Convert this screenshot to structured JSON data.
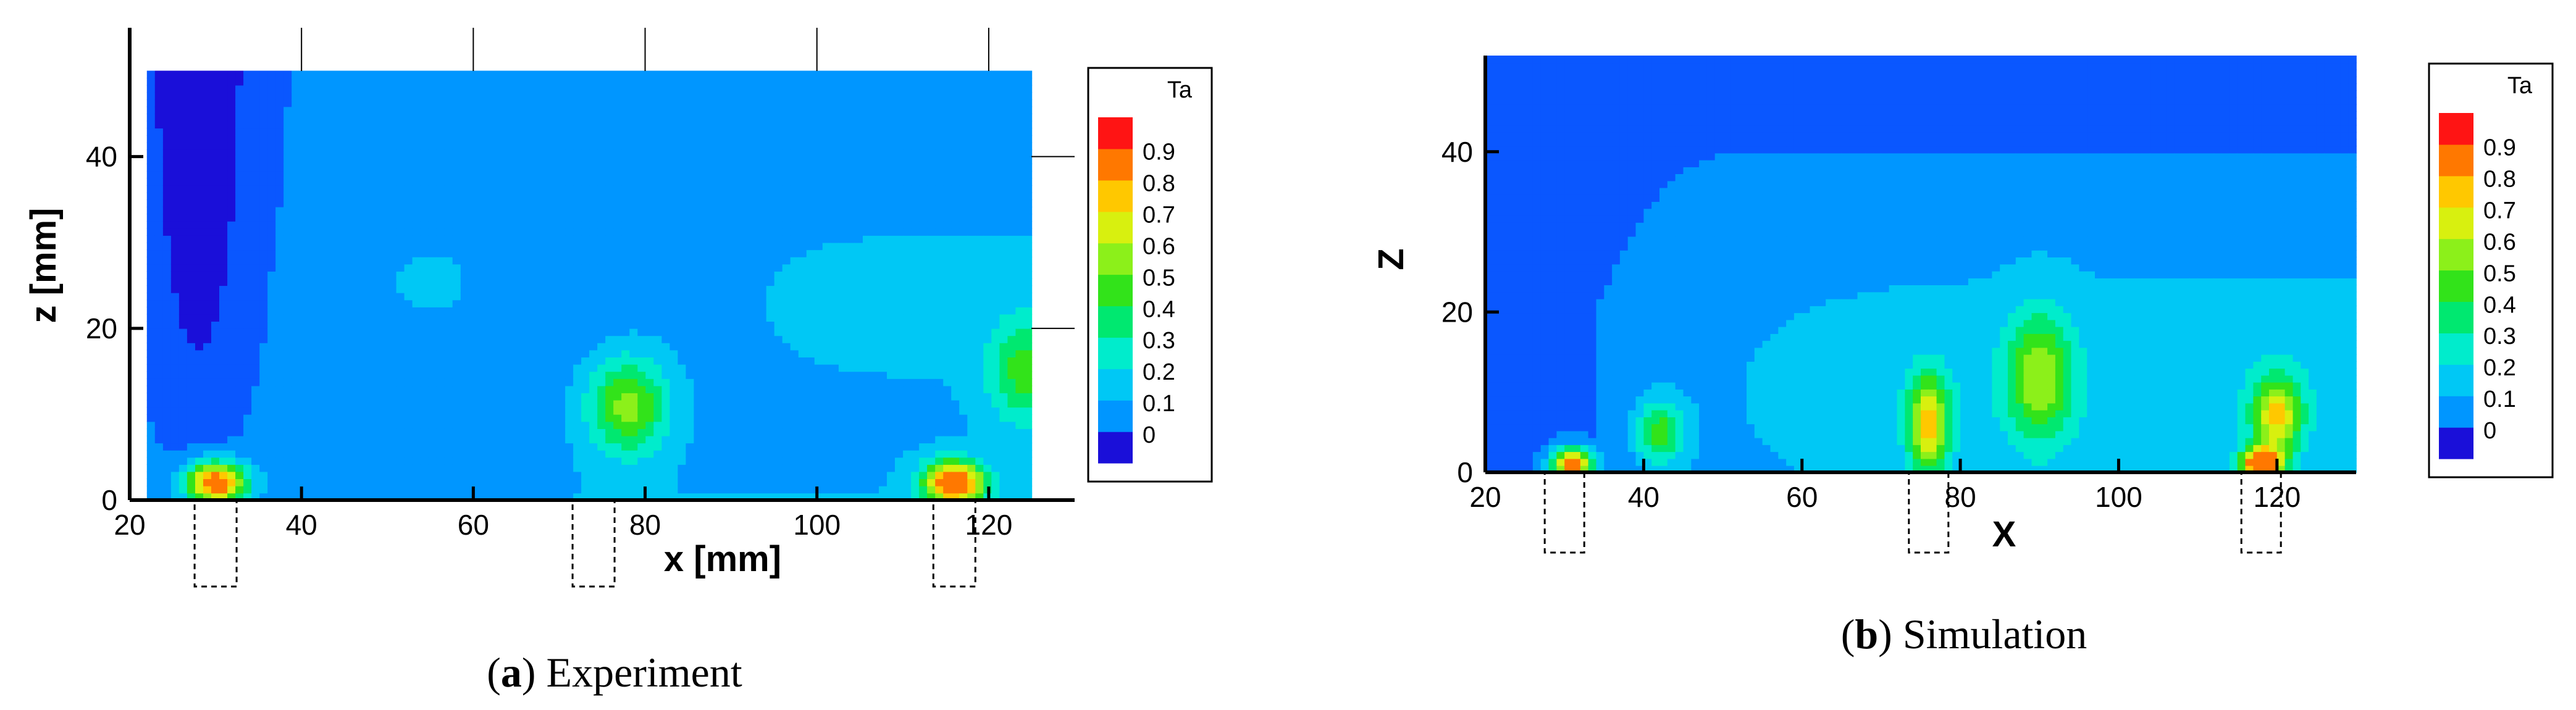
{
  "chart_data": [
    {
      "type": "heatmap",
      "panel": "a",
      "caption_letter": "a",
      "caption_text": "Experiment",
      "xlabel": "x [mm]",
      "ylabel": "z [mm]",
      "xlim": [
        20,
        130
      ],
      "ylim": [
        0,
        55
      ],
      "plot_xlim": [
        22,
        125
      ],
      "plot_zlim": [
        0,
        50
      ],
      "xticks": [
        20,
        40,
        60,
        80,
        100,
        120
      ],
      "yticks": [
        0,
        20,
        40
      ],
      "legend_title": "Ta",
      "legend_ticks": [
        "0",
        "0.1",
        "0.2",
        "0.3",
        "0.4",
        "0.5",
        "0.6",
        "0.7",
        "0.8",
        "0.9"
      ],
      "sources": [
        {
          "x": 30,
          "z": 2,
          "amp": 0.95,
          "sx": 3.5,
          "sz": 2.5
        },
        {
          "x": 78,
          "z": 11,
          "amp": 0.48,
          "sx": 4.5,
          "sz": 5.5
        },
        {
          "x": 116,
          "z": 2,
          "amp": 0.95,
          "sx": 3.5,
          "sz": 2.5
        },
        {
          "x": 124,
          "z": 15,
          "amp": 0.35,
          "sx": 4.0,
          "sz": 6.0
        }
      ],
      "heater_positions": [
        30,
        74,
        116
      ]
    },
    {
      "type": "heatmap",
      "panel": "b",
      "caption_letter": "b",
      "caption_text": "Simulation",
      "xlabel": "X",
      "ylabel": "Z",
      "xlim": [
        20,
        130
      ],
      "ylim": [
        0,
        52
      ],
      "plot_xlim": [
        20,
        130
      ],
      "plot_zlim": [
        0,
        52
      ],
      "xticks": [
        20,
        40,
        60,
        80,
        100,
        120
      ],
      "yticks": [
        0,
        20,
        40
      ],
      "legend_title": "Ta",
      "legend_ticks": [
        "0",
        "0.1",
        "0.2",
        "0.3",
        "0.4",
        "0.5",
        "0.6",
        "0.7",
        "0.8",
        "0.9"
      ],
      "sources": [
        {
          "x": 31,
          "z": 1,
          "amp": 0.95,
          "sx": 2.5,
          "sz": 2.0
        },
        {
          "x": 76,
          "z": 6,
          "amp": 0.65,
          "sx": 2.5,
          "sz": 6.0
        },
        {
          "x": 118,
          "z": 1,
          "amp": 0.95,
          "sx": 2.5,
          "sz": 2.0
        },
        {
          "x": 120,
          "z": 7,
          "amp": 0.6,
          "sx": 3.0,
          "sz": 5.0
        },
        {
          "x": 90,
          "z": 12,
          "amp": 0.45,
          "sx": 4.0,
          "sz": 8.0
        },
        {
          "x": 42,
          "z": 5,
          "amp": 0.4,
          "sx": 3.0,
          "sz": 4.0
        }
      ],
      "heater_positions": [
        30,
        76,
        118
      ]
    }
  ],
  "colorscale": [
    "#1a0fd9",
    "#0a57ff",
    "#0096ff",
    "#00c8f5",
    "#00eccc",
    "#00e870",
    "#32e31a",
    "#8cf01a",
    "#d8f00f",
    "#ffc800",
    "#ff7800",
    "#ff1414"
  ]
}
